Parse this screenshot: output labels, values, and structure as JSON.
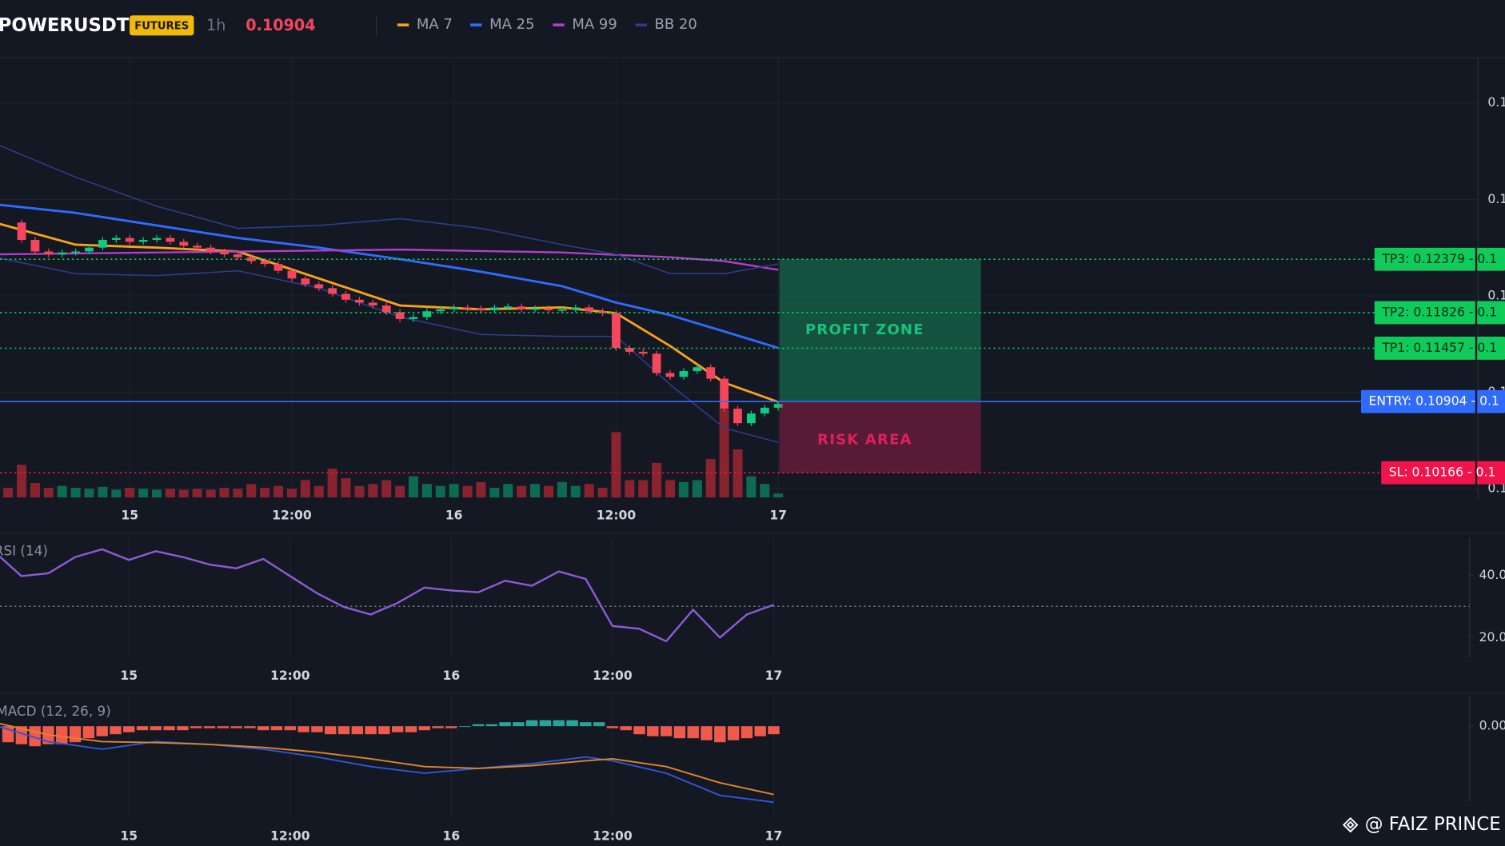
{
  "header": {
    "symbol": "POWERUSDT",
    "badge": "FUTURES",
    "interval": "1h",
    "price": 0.10904
  },
  "watermark": "@ FAIZ PRINCE",
  "chart_data": [
    {
      "type": "candlestick",
      "xlim": [
        -9.6,
        99.8
      ],
      "xticks": [
        {
          "value": 0,
          "label": "15"
        },
        {
          "value": 12,
          "label": "12:00"
        },
        {
          "value": 24,
          "label": "16"
        },
        {
          "value": 36,
          "label": "12:00"
        },
        {
          "value": 48,
          "label": "17"
        }
      ],
      "ylim": [
        0.0989,
        0.1447
      ],
      "yticks": [
        {
          "value": 0.14,
          "label": "0.1"
        },
        {
          "value": 0.13,
          "label": "0.1"
        },
        {
          "value": 0.12,
          "label": "0.1"
        },
        {
          "value": 0.11,
          "label": "0.1"
        },
        {
          "value": 0.1,
          "label": "0.1"
        }
      ],
      "colors": {
        "up": "#0ecb81",
        "down": "#f6465d"
      },
      "x": [
        -9,
        -8,
        -7,
        -6,
        -5,
        -4,
        -3,
        -2,
        -1,
        0,
        1,
        2,
        3,
        4,
        5,
        6,
        7,
        8,
        9,
        10,
        11,
        12,
        13,
        14,
        15,
        16,
        17,
        18,
        19,
        20,
        21,
        22,
        23,
        24,
        25,
        26,
        27,
        28,
        29,
        30,
        31,
        32,
        33,
        34,
        35,
        36,
        37,
        38,
        39,
        40,
        41,
        42,
        43,
        44,
        45,
        46,
        47,
        48
      ],
      "close": [
        0.1276,
        0.1258,
        0.1246,
        0.1243,
        0.1245,
        0.1246,
        0.125,
        0.1258,
        0.126,
        0.1256,
        0.1258,
        0.126,
        0.1256,
        0.1252,
        0.125,
        0.1246,
        0.1243,
        0.124,
        0.1236,
        0.1233,
        0.1226,
        0.1218,
        0.1212,
        0.1208,
        0.1202,
        0.1196,
        0.1193,
        0.119,
        0.1183,
        0.1176,
        0.1178,
        0.1184,
        0.1186,
        0.1188,
        0.1187,
        0.1185,
        0.1188,
        0.1189,
        0.1186,
        0.1187,
        0.1185,
        0.1186,
        0.1188,
        0.1184,
        0.1182,
        0.1146,
        0.1142,
        0.114,
        0.112,
        0.1116,
        0.1122,
        0.1126,
        0.1114,
        0.1083,
        0.1068,
        0.1078,
        0.1084,
        0.1088
      ],
      "volume": [
        10,
        34,
        15,
        10,
        12,
        10,
        9,
        11,
        8,
        10,
        9,
        8,
        9,
        8,
        9,
        8,
        10,
        9,
        14,
        10,
        12,
        9,
        18,
        12,
        30,
        20,
        12,
        14,
        18,
        12,
        22,
        14,
        12,
        14,
        12,
        16,
        10,
        14,
        12,
        14,
        12,
        16,
        12,
        14,
        10,
        68,
        18,
        18,
        36,
        18,
        16,
        18,
        40,
        92,
        50,
        22,
        14,
        4
      ],
      "lines": [
        {
          "name": "MA 7",
          "color": "#f7a21b",
          "x": [
            -10,
            -4,
            2,
            8,
            14,
            20,
            26,
            32,
            36,
            40,
            44,
            48
          ],
          "values": [
            0.1276,
            0.1253,
            0.125,
            0.1246,
            0.1218,
            0.119,
            0.1186,
            0.1188,
            0.1182,
            0.1148,
            0.111,
            0.109
          ]
        },
        {
          "name": "MA 25",
          "color": "#2f6bff",
          "x": [
            -10,
            -4,
            2,
            8,
            14,
            20,
            26,
            32,
            36,
            40,
            44,
            48
          ],
          "values": [
            0.1295,
            0.1286,
            0.1273,
            0.126,
            0.125,
            0.1238,
            0.1225,
            0.121,
            0.1193,
            0.118,
            0.1163,
            0.1146
          ]
        },
        {
          "name": "MA 99",
          "color": "#b03fc9",
          "x": [
            -10,
            8,
            20,
            32,
            40,
            44,
            48
          ],
          "values": [
            0.1243,
            0.1246,
            0.1248,
            0.1245,
            0.124,
            0.1236,
            0.1227
          ]
        },
        {
          "name": "BB 20",
          "color": "#2a3f8a",
          "x": [
            -10,
            -4,
            2,
            8,
            14,
            20,
            26,
            32,
            36,
            40,
            44,
            48
          ],
          "values": [
            0.1358,
            0.1323,
            0.1293,
            0.127,
            0.1273,
            0.128,
            0.127,
            0.1253,
            0.1243,
            0.1223,
            0.1223,
            0.1233
          ],
          "lower": [
            0.124,
            0.1223,
            0.1221,
            0.1226,
            0.1208,
            0.1178,
            0.116,
            0.1158,
            0.1158,
            0.1108,
            0.1063,
            0.1048
          ]
        }
      ],
      "levels": [
        {
          "label": "TP3: 0.12379 - 0.1",
          "value": 0.12379,
          "color": "#0ecb5a"
        },
        {
          "label": "TP2: 0.11826 - 0.1",
          "value": 0.11826,
          "color": "#0ecb5a"
        },
        {
          "label": "TP1: 0.11457 - 0.1",
          "value": 0.11457,
          "color": "#0ecb5a"
        },
        {
          "label": "ENTRY: 0.10904 - 0.1",
          "value": 0.10904,
          "color": "#2f6bff"
        },
        {
          "label": "SL: 0.10166 - 0.1",
          "value": 0.10166,
          "color": "#f0144a"
        }
      ],
      "zones": [
        {
          "label": "PROFIT ZONE",
          "color": "#16c47a"
        },
        {
          "label": "RISK AREA",
          "color": "#e0205a"
        }
      ]
    },
    {
      "type": "line",
      "title": "RSI (14)",
      "xlim": [
        -9.6,
        99.8
      ],
      "xticks": [
        {
          "value": 0,
          "label": "15"
        },
        {
          "value": 12,
          "label": "12:00"
        },
        {
          "value": 24,
          "label": "16"
        },
        {
          "value": 36,
          "label": "12:00"
        },
        {
          "value": 48,
          "label": "17"
        }
      ],
      "ylim": [
        13.5,
        52
      ],
      "yticks": [
        {
          "value": 40,
          "label": "40.0"
        },
        {
          "value": 20,
          "label": "20.0"
        }
      ],
      "reference": 30,
      "series": [
        {
          "color": "#8c5bd6",
          "x": [
            -10,
            -8,
            -6,
            -4,
            -2,
            0,
            2,
            4,
            6,
            8,
            10,
            12,
            14,
            16,
            18,
            20,
            22,
            24,
            26,
            28,
            30,
            32,
            34,
            36,
            38,
            40,
            42,
            44,
            46,
            48
          ],
          "values": [
            47.4,
            39.7,
            40.6,
            45.8,
            48.3,
            44.9,
            47.7,
            45.8,
            43.4,
            42.2,
            45.2,
            39.7,
            34.2,
            29.8,
            27.4,
            31.1,
            36.0,
            35.1,
            34.5,
            38.2,
            36.6,
            41.2,
            38.8,
            23.7,
            22.8,
            18.8,
            28.9,
            20.0,
            27.4,
            30.5
          ]
        }
      ]
    },
    {
      "type": "macd",
      "title": "MACD (12, 26, 9)",
      "xlim": [
        -9.6,
        99.8
      ],
      "xticks": [
        {
          "value": 0,
          "label": "15"
        },
        {
          "value": 12,
          "label": "12:00"
        },
        {
          "value": 24,
          "label": "16"
        },
        {
          "value": 36,
          "label": "12:00"
        },
        {
          "value": 48,
          "label": "17"
        }
      ],
      "ylim": [
        -0.0045,
        0.0015
      ],
      "yticks": [
        {
          "value": 0,
          "label": "0.00"
        }
      ],
      "colors": {
        "up": "#26a69a",
        "down": "#f05a4b"
      },
      "histogram": {
        "x": [
          -9,
          -8,
          -7,
          -6,
          -5,
          -4,
          -3,
          -2,
          -1,
          0,
          1,
          2,
          3,
          4,
          5,
          6,
          7,
          8,
          9,
          10,
          11,
          12,
          13,
          14,
          15,
          16,
          17,
          18,
          19,
          20,
          21,
          22,
          23,
          24,
          25,
          26,
          27,
          28,
          29,
          30,
          31,
          32,
          33,
          34,
          35,
          36,
          37,
          38,
          39,
          40,
          41,
          42,
          43,
          44,
          45,
          46,
          47,
          48
        ],
        "values": [
          -0.0008,
          -0.0009,
          -0.001,
          -0.0009,
          -0.0009,
          -0.0008,
          -0.0006,
          -0.0005,
          -0.0004,
          -0.0003,
          -0.0002,
          -0.0002,
          -0.0002,
          -0.0002,
          -0.0001,
          -0.0001,
          -0.0001,
          -0.0001,
          -0.0001,
          -0.0002,
          -0.0002,
          -0.0002,
          -0.0003,
          -0.0003,
          -0.0004,
          -0.0004,
          -0.0004,
          -0.0004,
          -0.0004,
          -0.0003,
          -0.0003,
          -0.0002,
          -0.0001,
          -0.0001,
          0,
          0.0001,
          0.0001,
          0.0002,
          0.0002,
          0.0003,
          0.0003,
          0.0003,
          0.0003,
          0.0002,
          0.0002,
          -0.0001,
          -0.0002,
          -0.0004,
          -0.0005,
          -0.0005,
          -0.0006,
          -0.0006,
          -0.0007,
          -0.0008,
          -0.0007,
          -0.0006,
          -0.0005,
          -0.0004
        ]
      },
      "series": [
        {
          "color": "#2f57d6",
          "x": [
            -10,
            -6,
            -2,
            2,
            6,
            10,
            14,
            18,
            22,
            26,
            30,
            34,
            36,
            40,
            44,
            48
          ],
          "values": [
            5e-05,
            -0.00077,
            -0.00115,
            -0.00077,
            -0.00091,
            -0.00115,
            -0.00154,
            -0.00202,
            -0.00235,
            -0.00211,
            -0.00187,
            -0.00154,
            -0.00173,
            -0.00235,
            -0.00346,
            -0.0038
          ]
        },
        {
          "color": "#e0852a",
          "x": [
            -10,
            -6,
            -2,
            2,
            6,
            10,
            14,
            18,
            22,
            26,
            30,
            34,
            36,
            40,
            44,
            48
          ],
          "values": [
            0.00019,
            -0.00043,
            -0.00077,
            -0.00082,
            -0.00091,
            -0.00106,
            -0.0013,
            -0.00163,
            -0.00202,
            -0.00211,
            -0.00197,
            -0.00173,
            -0.00163,
            -0.00202,
            -0.00283,
            -0.00341
          ]
        }
      ]
    }
  ]
}
